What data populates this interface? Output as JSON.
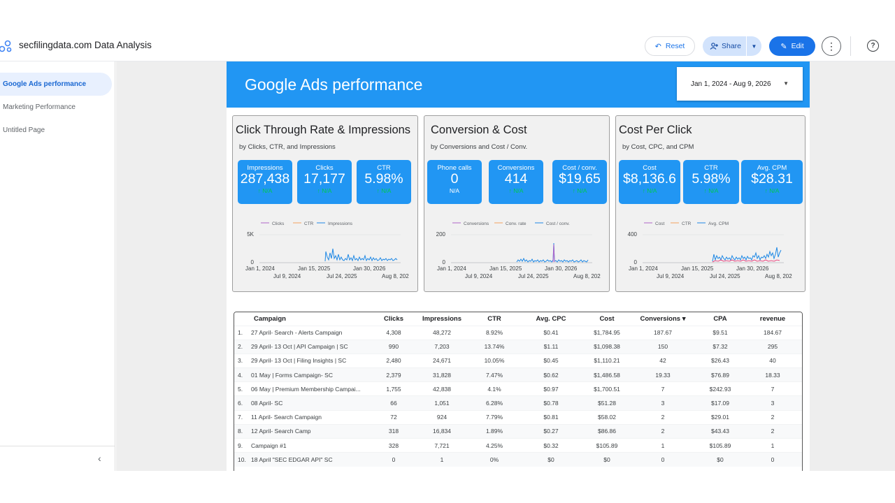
{
  "header": {
    "app_title": "secfilingdata.com Data Analysis",
    "reset_label": "Reset",
    "share_label": "Share",
    "edit_label": "Edit"
  },
  "sidebar": {
    "items": [
      {
        "label": "Google Ads performance"
      },
      {
        "label": "Marketing Performance"
      },
      {
        "label": "Untitled Page"
      }
    ]
  },
  "report": {
    "title": "Google Ads performance",
    "date_range": "Jan 1, 2024 - Aug 9, 2026"
  },
  "cards": [
    {
      "title": "Click Through Rate & Impressions",
      "subtitle": "by Clicks, CTR, and Impressions",
      "kpis": [
        {
          "label": "Impressions",
          "value": "287,438",
          "delta": "↑ N/A"
        },
        {
          "label": "Clicks",
          "value": "17,177",
          "delta": "↑ N/A"
        },
        {
          "label": "CTR",
          "value": "5.98%",
          "delta": "↑ N/A"
        }
      ],
      "legend": [
        "Clicks",
        "CTR",
        "Impressions"
      ],
      "y_ticks": [
        "5K",
        "0"
      ],
      "x_ticks_top": [
        "Jan 1, 2024",
        "Jan 15, 2025",
        "Jan 30, 2026"
      ],
      "x_ticks_bottom": [
        "Jul 9, 2024",
        "Jul 24, 2025",
        "Aug 8, 202"
      ]
    },
    {
      "title": "Conversion & Cost",
      "subtitle": "by Conversions and Cost / Conv.",
      "kpis": [
        {
          "label": "Phone calls",
          "value": "0",
          "delta": "N/A"
        },
        {
          "label": "Conversions",
          "value": "414",
          "delta": "↑ N/A"
        },
        {
          "label": "Cost / conv.",
          "value": "$19.65",
          "delta": "↑ N/A"
        }
      ],
      "legend": [
        "Conversions",
        "Conv. rate",
        "Cost / conv."
      ],
      "y_ticks": [
        "200",
        "0"
      ],
      "x_ticks_top": [
        "Jan 1, 2024",
        "Jan 15, 2025",
        "Jan 30, 2026"
      ],
      "x_ticks_bottom": [
        "Jul 9, 2024",
        "Jul 24, 2025",
        "Aug 8, 202"
      ]
    },
    {
      "title": "Cost Per Click",
      "subtitle": "by Cost, CPC, and CPM",
      "kpis": [
        {
          "label": "Cost",
          "value": "$8,136.6",
          "delta": "↑ N/A"
        },
        {
          "label": "CTR",
          "value": "5.98%",
          "delta": "↑ N/A"
        },
        {
          "label": "Avg. CPM",
          "value": "$28.31",
          "delta": "↑ N/A"
        }
      ],
      "legend": [
        "Cost",
        "CTR",
        "Avg. CPM"
      ],
      "y_ticks": [
        "400",
        "0"
      ],
      "x_ticks_top": [
        "Jan 1, 2024",
        "Jan 15, 2025",
        "Jan 30, 2026"
      ],
      "x_ticks_bottom": [
        "Jul 9, 2024",
        "Jul 24, 2025",
        "Aug 8, 202"
      ]
    }
  ],
  "colors": {
    "accent": "#2196f3",
    "series_purple": "#b065c9",
    "series_orange": "#f4a460",
    "series_blue": "#1e88e5",
    "delta_green": "#00c853"
  },
  "table": {
    "columns": [
      "Campaign",
      "Clicks",
      "Impressions",
      "CTR",
      "Avg. CPC",
      "Cost",
      "Conversions ▾",
      "CPA",
      "revenue"
    ],
    "rows": [
      [
        "1.",
        "27 April- Search - Alerts Campaign",
        "4,308",
        "48,272",
        "8.92%",
        "$0.41",
        "$1,784.95",
        "187.67",
        "$9.51",
        "184.67"
      ],
      [
        "2.",
        "29 April- 13 Oct | API Campaign | SC",
        "990",
        "7,203",
        "13.74%",
        "$1.11",
        "$1,098.38",
        "150",
        "$7.32",
        "295"
      ],
      [
        "3.",
        "29 April- 13 Oct | Filing Insights | SC",
        "2,480",
        "24,671",
        "10.05%",
        "$0.45",
        "$1,110.21",
        "42",
        "$26.43",
        "40"
      ],
      [
        "4.",
        "01 May | Forms Campaign- SC",
        "2,379",
        "31,828",
        "7.47%",
        "$0.62",
        "$1,486.58",
        "19.33",
        "$76.89",
        "18.33"
      ],
      [
        "5.",
        "06 May | Premium Membership Campai...",
        "1,755",
        "42,838",
        "4.1%",
        "$0.97",
        "$1,700.51",
        "7",
        "$242.93",
        "7"
      ],
      [
        "6.",
        "08 April- SC",
        "66",
        "1,051",
        "6.28%",
        "$0.78",
        "$51.28",
        "3",
        "$17.09",
        "3"
      ],
      [
        "7.",
        "11 April- Search Campaign",
        "72",
        "924",
        "7.79%",
        "$0.81",
        "$58.02",
        "2",
        "$29.01",
        "2"
      ],
      [
        "8.",
        "12 April- Search Camp",
        "318",
        "16,834",
        "1.89%",
        "$0.27",
        "$86.86",
        "2",
        "$43.43",
        "2"
      ],
      [
        "9.",
        "Campaign #1",
        "328",
        "7,721",
        "4.25%",
        "$0.32",
        "$105.89",
        "1",
        "$105.89",
        "1"
      ],
      [
        "10.",
        "18 April \"SEC EDGAR API\" SC",
        "0",
        "1",
        "0%",
        "$0",
        "$0",
        "0",
        "$0",
        "0"
      ]
    ]
  }
}
